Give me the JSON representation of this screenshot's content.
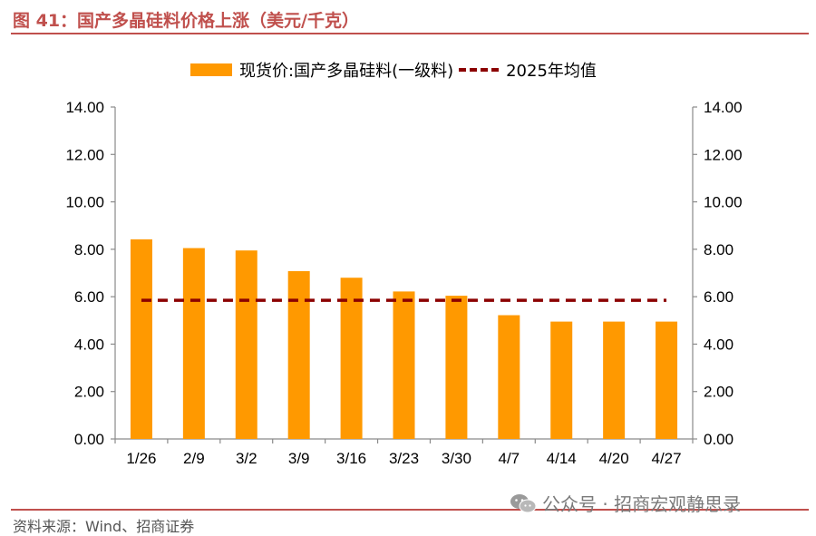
{
  "header": {
    "title": "图 41：国产多晶硅料价格上涨（美元/千克）"
  },
  "legend": {
    "bar_label": "现货价:国产多晶硅料(一级料)",
    "line_label": "2025年均值"
  },
  "footer": {
    "source": "资料来源：Wind、招商证券",
    "watermark": "公众号 · 招商宏观静思录",
    "watermark_icon": "wechat-icon"
  },
  "colors": {
    "bar": "#ff9900",
    "average_line": "#8b0000",
    "accent": "#c0504d"
  },
  "chart_data": {
    "type": "bar",
    "categories": [
      "1/26",
      "2/9",
      "3/2",
      "3/9",
      "3/16",
      "3/23",
      "3/30",
      "4/7",
      "4/14",
      "4/20",
      "4/27"
    ],
    "series": [
      {
        "name": "现货价:国产多晶硅料(一级料)",
        "type": "bar",
        "values": [
          8.42,
          8.05,
          7.95,
          7.08,
          6.8,
          6.22,
          6.04,
          5.22,
          4.95,
          4.95,
          4.95
        ]
      },
      {
        "name": "2025年均值",
        "type": "line",
        "style": "dashed",
        "values": [
          5.85,
          5.85,
          5.85,
          5.85,
          5.85,
          5.85,
          5.85,
          5.85,
          5.85,
          5.85,
          5.85
        ]
      }
    ],
    "ylim": [
      0,
      14
    ],
    "yticks": [
      "0.00",
      "2.00",
      "4.00",
      "6.00",
      "8.00",
      "10.00",
      "12.00",
      "14.00"
    ],
    "y2lim": [
      0,
      14
    ],
    "y2ticks": [
      "0.00",
      "2.00",
      "4.00",
      "6.00",
      "8.00",
      "10.00",
      "12.00",
      "14.00"
    ],
    "grid": false,
    "legend_position": "top"
  }
}
